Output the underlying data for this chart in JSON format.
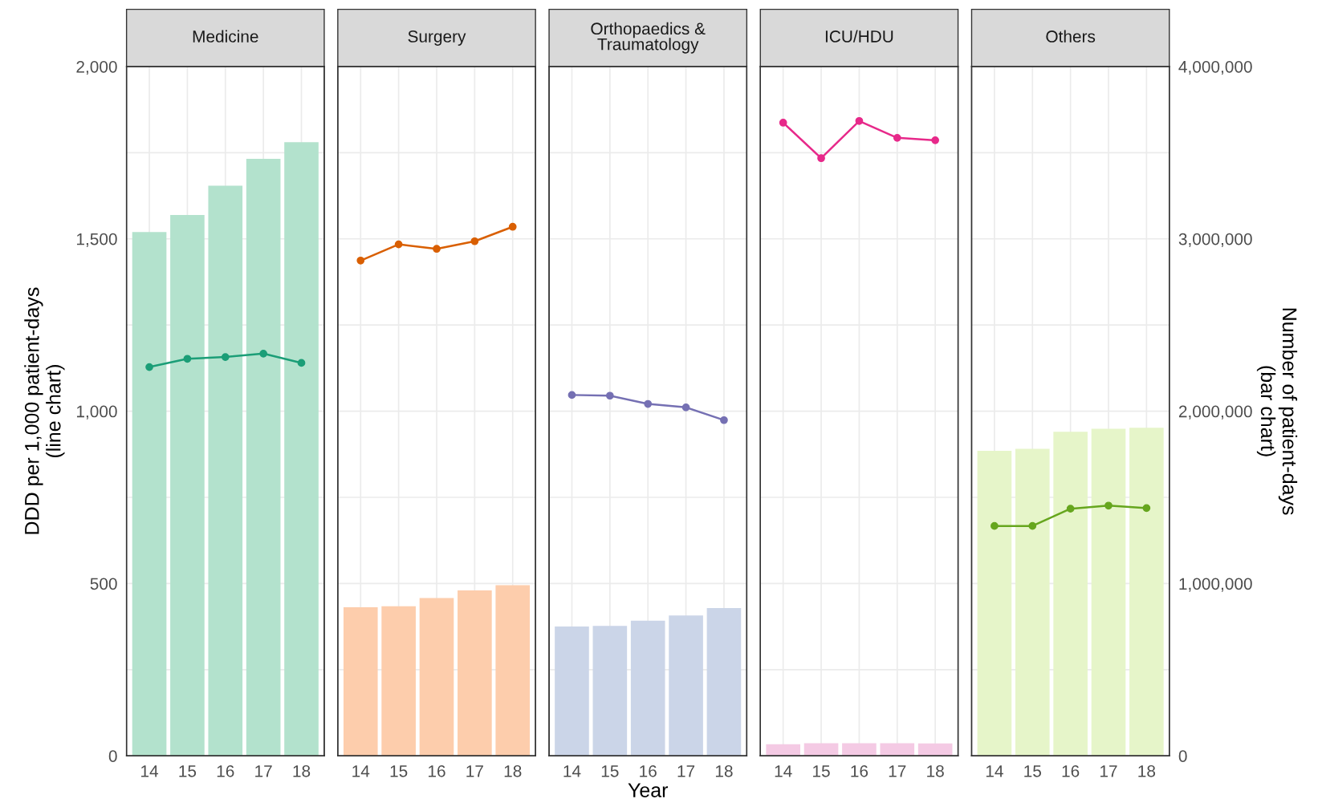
{
  "chart_data": [
    {
      "type": "bar",
      "title": "Medicine",
      "categories": [
        "14",
        "15",
        "16",
        "17",
        "18"
      ],
      "ylabel": "DDD per 1,000 patient-days\n(line chart)",
      "tick_labels": "xy",
      "series": [
        {
          "axis": "y2",
          "color": "#b3e2cd",
          "values": [
            3040000,
            3138000,
            3308000,
            3464000,
            3561000
          ]
        },
        {
          "type": "line",
          "color": "#1b9e77",
          "marker": "circle",
          "values": [
            1128,
            1152,
            1157,
            1167,
            1140
          ]
        }
      ],
      "ylim": [
        0,
        2000
      ],
      "yticks": [
        0,
        {
          "value": 500,
          "label": "500"
        },
        {
          "value": 1000,
          "label": "1,000"
        },
        {
          "value": 1500,
          "label": "1,500"
        },
        {
          "value": 2000,
          "label": "2,000"
        }
      ],
      "y2lim": [
        0,
        4000000
      ],
      "grid": true
    },
    {
      "type": "bar",
      "title": "Surgery",
      "categories": [
        "14",
        "15",
        "16",
        "17",
        "18"
      ],
      "tick_labels": "x",
      "series": [
        {
          "axis": "y2",
          "color": "#fdcdac",
          "values": [
            862000,
            868000,
            916000,
            960000,
            990000
          ]
        },
        {
          "type": "line",
          "color": "#d95f02",
          "marker": "circle",
          "values": [
            1437,
            1484,
            1471,
            1493,
            1535
          ]
        }
      ],
      "ylim": [
        0,
        2000
      ],
      "y2lim": [
        0,
        4000000
      ],
      "grid": true
    },
    {
      "type": "bar",
      "title": "Orthopaedics &\nTraumatology",
      "categories": [
        "14",
        "15",
        "16",
        "17",
        "18"
      ],
      "xlabel": "Year",
      "tick_labels": "x",
      "series": [
        {
          "axis": "y2",
          "color": "#cbd5e8",
          "values": [
            750000,
            754000,
            784000,
            814000,
            858000
          ]
        },
        {
          "type": "line",
          "color": "#7570b3",
          "marker": "circle",
          "values": [
            1047,
            1045,
            1021,
            1011,
            974
          ]
        }
      ],
      "ylim": [
        0,
        2000
      ],
      "y2lim": [
        0,
        4000000
      ],
      "grid": true
    },
    {
      "type": "bar",
      "title": "ICU/HDU",
      "categories": [
        "14",
        "15",
        "16",
        "17",
        "18"
      ],
      "tick_labels": "x",
      "series": [
        {
          "axis": "y2",
          "color": "#f4cae4",
          "values": [
            68000,
            73000,
            73000,
            73000,
            72000
          ]
        },
        {
          "type": "line",
          "color": "#e7298a",
          "marker": "circle",
          "values": [
            1837,
            1734,
            1842,
            1793,
            1786
          ]
        }
      ],
      "ylim": [
        0,
        2000
      ],
      "y2lim": [
        0,
        4000000
      ],
      "grid": true
    },
    {
      "type": "bar",
      "title": "Others",
      "categories": [
        "14",
        "15",
        "16",
        "17",
        "18"
      ],
      "y2label": "Number of patient-days\n(bar chart)",
      "tick_labels": "xy2",
      "series": [
        {
          "axis": "y2",
          "color": "#e6f5c9",
          "values": [
            1770000,
            1782000,
            1880000,
            1898000,
            1904000
          ]
        },
        {
          "type": "line",
          "color": "#66a61e",
          "marker": "circle",
          "values": [
            667,
            667,
            717,
            726,
            719
          ]
        }
      ],
      "ylim": [
        0,
        2000
      ],
      "y2lim": [
        0,
        4000000
      ],
      "y2ticks": [
        0,
        {
          "value": 1000000,
          "label": "1,000,000"
        },
        {
          "value": 2000000,
          "label": "2,000,000"
        },
        {
          "value": 3000000,
          "label": "3,000,000"
        },
        {
          "value": 4000000,
          "label": "4,000,000"
        }
      ],
      "grid": true
    }
  ]
}
